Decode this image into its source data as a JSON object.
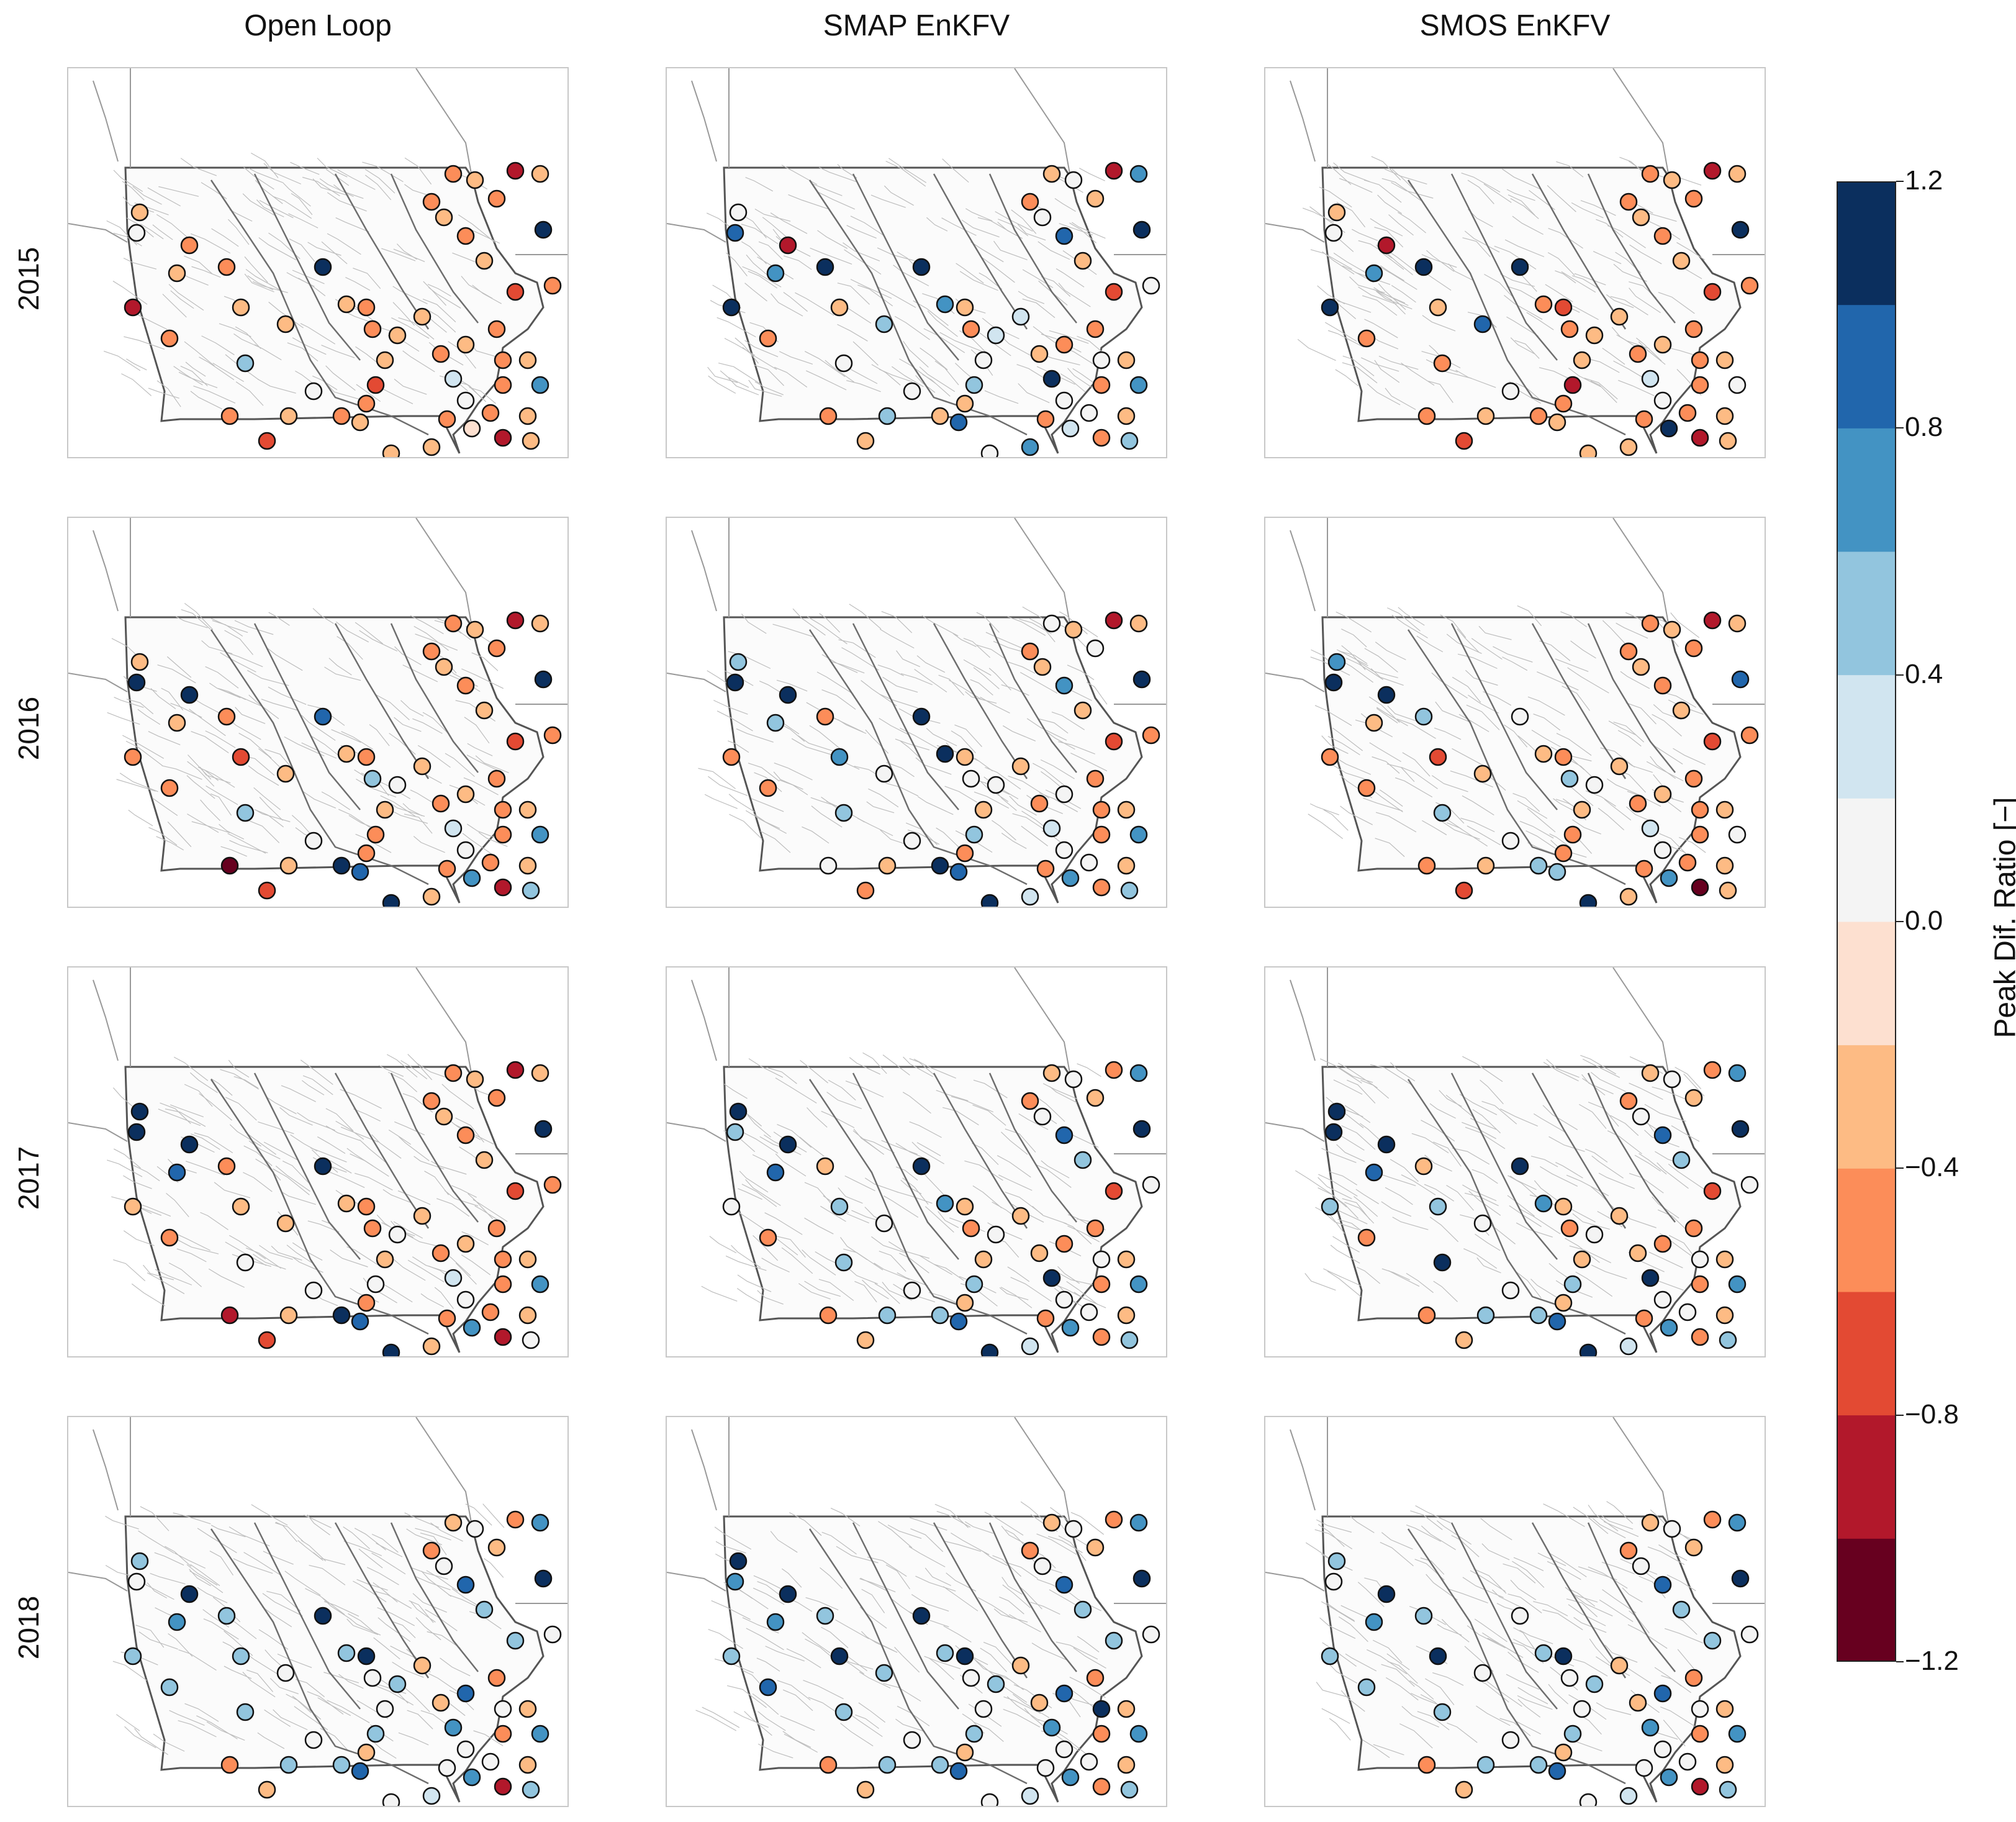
{
  "columns": [
    "Open Loop",
    "SMAP EnKFV",
    "SMOS EnKFV"
  ],
  "rows": [
    "2015",
    "2016",
    "2017",
    "2018"
  ],
  "colorbar": {
    "label": "Peak Dif. Ratio [−]",
    "ticks": [
      "1.2",
      "0.8",
      "0.4",
      "0.0",
      "−0.4",
      "−0.8",
      "−1.2"
    ],
    "range": [
      -1.2,
      1.2
    ],
    "colors": [
      "#67001f",
      "#b2182b",
      "#d6604d",
      "#f4a582",
      "#fddbc7",
      "#f7f7f7",
      "#d1e5f0",
      "#92c5de",
      "#4393c3",
      "#2166ac",
      "#053061",
      "#0a2f5c"
    ]
  },
  "chart_data": {
    "type": "scatter",
    "description_type": "map-scatter small multiples",
    "value_key": "peak_dif_ratio",
    "panels": [
      {
        "column": "Open Loop",
        "row": "2015",
        "values": [
          -0.3,
          0,
          -0.9,
          -0.5,
          -0.4,
          -0.6,
          -0.4,
          -0.3,
          0.5,
          -0.5,
          1.2,
          -0.4,
          -0.6,
          -0.5,
          -0.3,
          -0.4,
          -0.7,
          -0.5,
          -0.4,
          -0.5,
          -0.3,
          -0.6,
          -0.4,
          -0.5,
          -0.2,
          0.1,
          0.3,
          -0.6,
          -0.4,
          -0.3,
          -0.6,
          -0.5,
          -0.7,
          -0.4,
          -0.5,
          -0.3,
          -0.5,
          -0.6,
          -0.4,
          -0.5,
          -0.8,
          -0.3,
          1.1,
          -0.5,
          -0.4,
          0.6,
          -0.6,
          -0.5,
          -0.4,
          -0.3,
          -0.9,
          -0.6,
          0.1,
          -0.4,
          -0.7,
          -0.5
        ]
      },
      {
        "column": "SMAP EnKFV",
        "row": "2015",
        "values": [
          0.0,
          0.8,
          1.2,
          -0.9,
          0.6,
          1.1,
          -0.3,
          0.5,
          0.0,
          -0.5,
          1.2,
          0.7,
          -0.4,
          -0.5,
          0.2,
          0.0,
          0.4,
          -0.3,
          0.9,
          -0.4,
          0.0,
          -0.6,
          0.7,
          -0.5,
          0.2,
          0.1,
          1.0,
          -0.4,
          0.3,
          -0.5,
          0.0,
          -0.5,
          -0.7,
          -0.3,
          0.8,
          0.1,
          -0.5,
          -0.4,
          0.0,
          -0.3,
          -0.8,
          0.6,
          1.1,
          0.0,
          -0.4,
          0.6,
          -0.5,
          0.0,
          -0.3,
          0.4,
          -0.6,
          -0.5,
          0.0,
          0.5,
          -0.4,
          -0.6
        ]
      },
      {
        "column": "SMOS EnKFV",
        "row": "2015",
        "values": [
          -0.3,
          0,
          1.2,
          -0.9,
          0.7,
          1.1,
          -0.4,
          0.8,
          -0.6,
          -0.5,
          1.2,
          -0.6,
          -0.7,
          -0.5,
          -0.3,
          -0.4,
          -0.8,
          -0.5,
          -0.4,
          -0.5,
          -0.3,
          -0.6,
          -0.4,
          -0.5,
          1.1,
          0.1,
          0.3,
          -0.6,
          -0.4,
          -0.3,
          -0.6,
          -0.5,
          -0.7,
          -0.4,
          -0.5,
          -0.3,
          -0.5,
          -0.6,
          -0.4,
          -0.5,
          -0.8,
          -0.3,
          1.1,
          -0.5,
          -0.4,
          0.0,
          -0.6,
          -0.5,
          -0.4,
          -0.3,
          -0.9,
          -0.6,
          0.1,
          -0.4,
          -0.7,
          -0.5
        ]
      },
      {
        "column": "Open Loop",
        "row": "2016",
        "values": [
          -0.3,
          1.2,
          -0.5,
          1.1,
          -0.4,
          -0.6,
          -0.7,
          -0.4,
          0.5,
          -0.5,
          0.9,
          -0.4,
          -0.6,
          0.4,
          0.0,
          -0.4,
          -0.5,
          -0.5,
          0.8,
          1.2,
          1.1,
          -0.6,
          -0.4,
          -0.5,
          0.6,
          0.1,
          0.3,
          -0.6,
          -0.4,
          -0.3,
          -0.6,
          -0.5,
          -0.7,
          -0.4,
          -0.5,
          -0.3,
          -0.5,
          -0.6,
          -0.4,
          -0.5,
          -0.8,
          -0.3,
          1.1,
          -0.5,
          -0.4,
          0.6,
          -0.6,
          -0.5,
          -0.4,
          0.4,
          -0.9,
          -0.6,
          0.1,
          -0.4,
          -0.7,
          -1.0
        ]
      },
      {
        "column": "SMAP EnKFV",
        "row": "2016",
        "values": [
          0.4,
          1.2,
          -0.5,
          1.1,
          0.5,
          -0.6,
          0.6,
          0.0,
          0.5,
          -0.5,
          1.2,
          1.1,
          -0.4,
          0.0,
          0.0,
          -0.4,
          0.4,
          -0.5,
          0.9,
          1.2,
          1.1,
          -0.6,
          0.3,
          -0.5,
          0.6,
          0.1,
          0.3,
          -0.6,
          -0.4,
          0.0,
          -0.6,
          -0.5,
          -0.7,
          -0.4,
          0.7,
          -0.3,
          -0.5,
          0.0,
          -0.4,
          0.0,
          -0.8,
          -0.3,
          1.1,
          -0.5,
          -0.4,
          0.6,
          -0.6,
          0.0,
          -0.4,
          0.4,
          -0.6,
          -0.6,
          0.1,
          -0.4,
          -0.5,
          0.0
        ]
      },
      {
        "column": "SMOS EnKFV",
        "row": "2016",
        "values": [
          0.6,
          1.2,
          -0.5,
          1.1,
          -0.4,
          0.4,
          -0.7,
          -0.4,
          0.5,
          -0.5,
          0.0,
          -0.4,
          -0.6,
          0.4,
          0.0,
          -0.4,
          -0.5,
          -0.5,
          0.5,
          0.4,
          1.1,
          -0.6,
          -0.4,
          -0.5,
          0.6,
          0.1,
          0.3,
          -0.6,
          -0.4,
          -0.3,
          -0.6,
          -0.5,
          -0.7,
          -0.4,
          -0.5,
          -0.3,
          -0.5,
          -0.6,
          -0.4,
          -0.5,
          -0.9,
          -0.3,
          0.9,
          -0.5,
          -0.4,
          0.0,
          -0.6,
          -0.5,
          -0.4,
          -0.3,
          -1.0,
          -0.6,
          0.0,
          -0.4,
          -0.7,
          -0.6
        ]
      },
      {
        "column": "Open Loop",
        "row": "2017",
        "values": [
          1.2,
          1.1,
          -0.4,
          1.1,
          0.8,
          -0.6,
          -0.3,
          -0.4,
          0.0,
          -0.5,
          1.2,
          -0.4,
          -0.6,
          -0.5,
          0.0,
          -0.4,
          0.0,
          -0.5,
          0.8,
          1.2,
          1.1,
          -0.6,
          -0.4,
          -0.5,
          0.6,
          0.1,
          0.3,
          -0.6,
          -0.4,
          -0.3,
          -0.6,
          -0.5,
          -0.7,
          -0.4,
          -0.5,
          -0.3,
          -0.5,
          -0.6,
          -0.4,
          -0.5,
          -0.8,
          -0.3,
          1.1,
          -0.5,
          -0.4,
          0.6,
          -0.6,
          -0.5,
          -0.4,
          0.0,
          -0.9,
          -0.6,
          0.1,
          -0.4,
          -0.7,
          -0.9
        ]
      },
      {
        "column": "SMAP EnKFV",
        "row": "2017",
        "values": [
          1.2,
          0.4,
          0.0,
          1.1,
          0.8,
          -0.3,
          0.5,
          0.0,
          0.4,
          -0.5,
          1.2,
          0.7,
          -0.4,
          -0.5,
          0.0,
          -0.4,
          0.4,
          -0.3,
          0.9,
          0.5,
          1.1,
          -0.6,
          0.3,
          -0.5,
          0.6,
          0.1,
          1.0,
          -0.4,
          -0.3,
          -0.5,
          0.0,
          -0.5,
          -0.7,
          0.4,
          0.8,
          0.1,
          -0.5,
          -0.4,
          0.0,
          -0.3,
          -0.6,
          0.6,
          1.1,
          0.0,
          -0.4,
          0.6,
          -0.5,
          0.0,
          -0.3,
          0.4,
          -0.6,
          -0.5,
          0.0,
          0.5,
          -0.4,
          -0.6
        ]
      },
      {
        "column": "SMOS EnKFV",
        "row": "2017",
        "values": [
          1.2,
          1.1,
          0.4,
          1.1,
          0.8,
          -0.3,
          0.5,
          0.0,
          1.2,
          -0.5,
          1.2,
          0.7,
          -0.4,
          -0.5,
          0.0,
          -0.4,
          0.4,
          -0.3,
          0.9,
          0.5,
          1.1,
          -0.6,
          0.3,
          -0.5,
          0.6,
          0.1,
          1.0,
          -0.4,
          -0.3,
          -0.5,
          0.0,
          -0.5,
          -0.7,
          0.4,
          0.8,
          0.1,
          -0.5,
          -0.4,
          0.0,
          -0.3,
          -0.6,
          0.6,
          1.1,
          0.0,
          -0.4,
          0.6,
          -0.5,
          0.0,
          -0.3,
          0.4,
          -0.6,
          -0.5,
          0.0,
          0.5,
          -0.4,
          -0.6
        ]
      },
      {
        "column": "Open Loop",
        "row": "2018",
        "values": [
          0.5,
          0.0,
          0.4,
          1.2,
          0.6,
          0.5,
          0.4,
          0.0,
          0.4,
          0.5,
          1.1,
          0.4,
          1.2,
          0.0,
          0.5,
          0.0,
          0.4,
          -0.3,
          0.9,
          0.5,
          0.0,
          -0.4,
          0.3,
          0.0,
          0.6,
          0.1,
          0.6,
          -0.4,
          -0.3,
          0.8,
          0.0,
          -0.5,
          0.4,
          0.4,
          0.8,
          0.1,
          -0.5,
          -0.4,
          0.0,
          -0.3,
          -0.6,
          0.6,
          1.1,
          0.0,
          -0.4,
          0.6,
          -0.5,
          0.0,
          -0.3,
          0.4,
          -0.9,
          -0.5,
          0.0,
          0.5,
          -0.4,
          -0.6
        ]
      },
      {
        "column": "SMAP EnKFV",
        "row": "2018",
        "values": [
          1.0,
          0.6,
          0.4,
          1.2,
          0.6,
          0.5,
          1.1,
          0.4,
          0.4,
          0.8,
          1.1,
          0.4,
          1.2,
          0.0,
          0.5,
          0.0,
          0.4,
          -0.3,
          0.9,
          0.5,
          0.0,
          -0.4,
          0.3,
          0.0,
          0.6,
          0.1,
          0.6,
          -0.4,
          -0.3,
          0.8,
          1.1,
          -0.5,
          0.4,
          0.4,
          0.8,
          0.1,
          -0.5,
          -0.4,
          0.0,
          -0.3,
          -0.6,
          0.6,
          1.1,
          0.0,
          -0.4,
          0.6,
          -0.5,
          0.0,
          -0.3,
          0.4,
          -0.6,
          -0.5,
          0.0,
          0.5,
          -0.4,
          -0.6
        ]
      },
      {
        "column": "SMOS EnKFV",
        "row": "2018",
        "values": [
          0.5,
          0.0,
          0.4,
          1.2,
          0.6,
          0.5,
          1.1,
          0.0,
          0.4,
          0.5,
          0.0,
          0.4,
          1.2,
          0.0,
          0.5,
          0.0,
          0.4,
          -0.3,
          0.9,
          0.5,
          0.0,
          -0.4,
          0.3,
          0.0,
          0.6,
          0.1,
          0.6,
          -0.4,
          -0.3,
          0.8,
          0.0,
          -0.5,
          0.4,
          0.4,
          0.8,
          0.1,
          -0.5,
          -0.4,
          0.0,
          -0.3,
          -0.6,
          0.6,
          1.1,
          0.0,
          -0.4,
          0.6,
          -0.5,
          0.0,
          -0.3,
          0.4,
          -0.8,
          -0.5,
          0.0,
          0.5,
          -0.4,
          -0.6
        ]
      }
    ]
  }
}
